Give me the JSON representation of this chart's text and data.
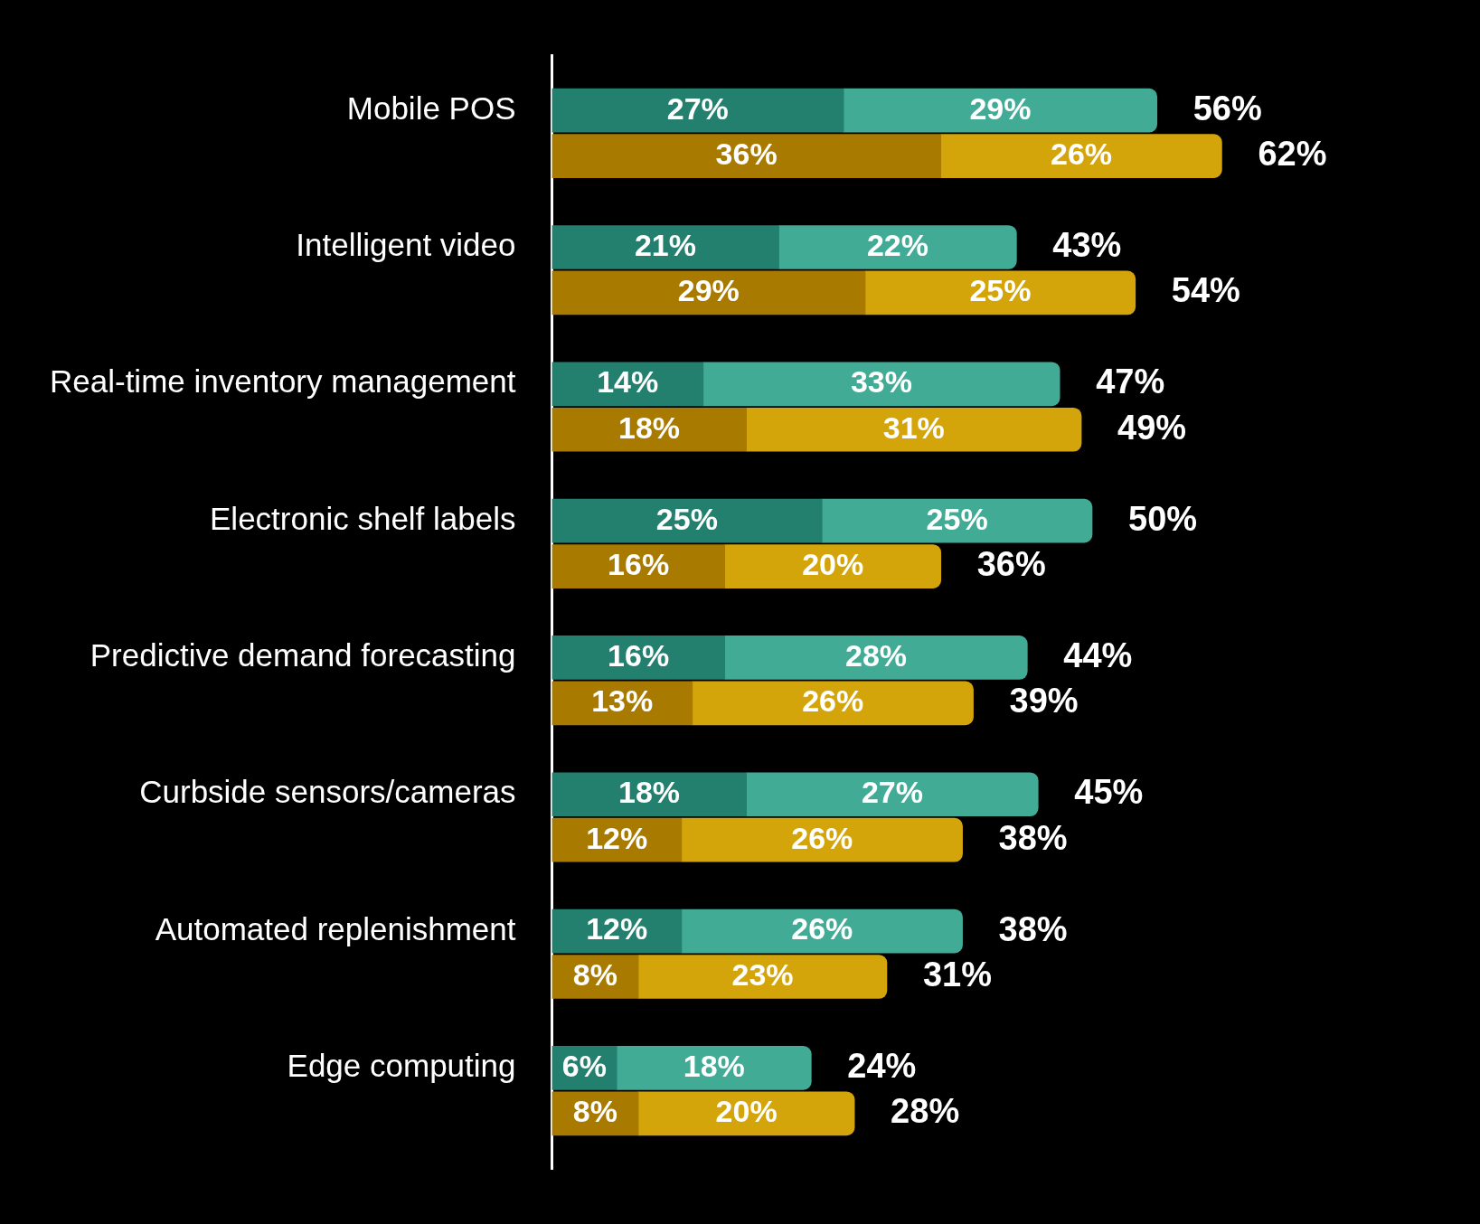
{
  "chart_data": {
    "type": "bar",
    "orientation": "horizontal",
    "stacked": true,
    "legend": false,
    "tick_labels": "y",
    "categories": [
      "Mobile POS",
      null,
      "Intelligent video",
      null,
      "Real-time inventory management",
      null,
      "Electronic shelf labels",
      null,
      "Predictive demand forecasting",
      null,
      "Curbside sensors/cameras",
      null,
      "Automated replenishment",
      null,
      "Edge computing",
      null
    ],
    "series": [
      {
        "colors": [
          "#237f6e",
          "#a87a00",
          "#237f6e",
          "#a87a00",
          "#237f6e",
          "#a87a00",
          "#237f6e",
          "#a87a00",
          "#237f6e",
          "#a87a00",
          "#237f6e",
          "#a87a00",
          "#237f6e",
          "#a87a00",
          "#237f6e",
          "#a87a00"
        ],
        "values": [
          27,
          36,
          21,
          29,
          14,
          18,
          25,
          16,
          16,
          13,
          18,
          12,
          12,
          8,
          6,
          8
        ],
        "value_labels": [
          "27%",
          "36%",
          "21%",
          "29%",
          "14%",
          "18%",
          "25%",
          "16%",
          "16%",
          "13%",
          "18%",
          "12%",
          "12%",
          "8%",
          "6%",
          "8%"
        ]
      },
      {
        "colors": [
          "#41ab96",
          "#d4a50a",
          "#41ab96",
          "#d4a50a",
          "#41ab96",
          "#d4a50a",
          "#41ab96",
          "#d4a50a",
          "#41ab96",
          "#d4a50a",
          "#41ab96",
          "#d4a50a",
          "#41ab96",
          "#d4a50a",
          "#41ab96",
          "#d4a50a"
        ],
        "values": [
          29,
          26,
          22,
          25,
          33,
          31,
          25,
          20,
          28,
          26,
          27,
          26,
          26,
          23,
          18,
          20
        ],
        "value_labels": [
          "29%",
          "26%",
          "22%",
          "25%",
          "33%",
          "31%",
          "25%",
          "20%",
          "28%",
          "26%",
          "27%",
          "26%",
          "26%",
          "23%",
          "18%",
          "20%"
        ]
      }
    ],
    "totals": [
      "56%",
      "62%",
      "43%",
      "54%",
      "47%",
      "49%",
      "50%",
      "36%",
      "44%",
      "39%",
      "45%",
      "38%",
      "38%",
      "31%",
      "24%",
      "28%"
    ]
  }
}
